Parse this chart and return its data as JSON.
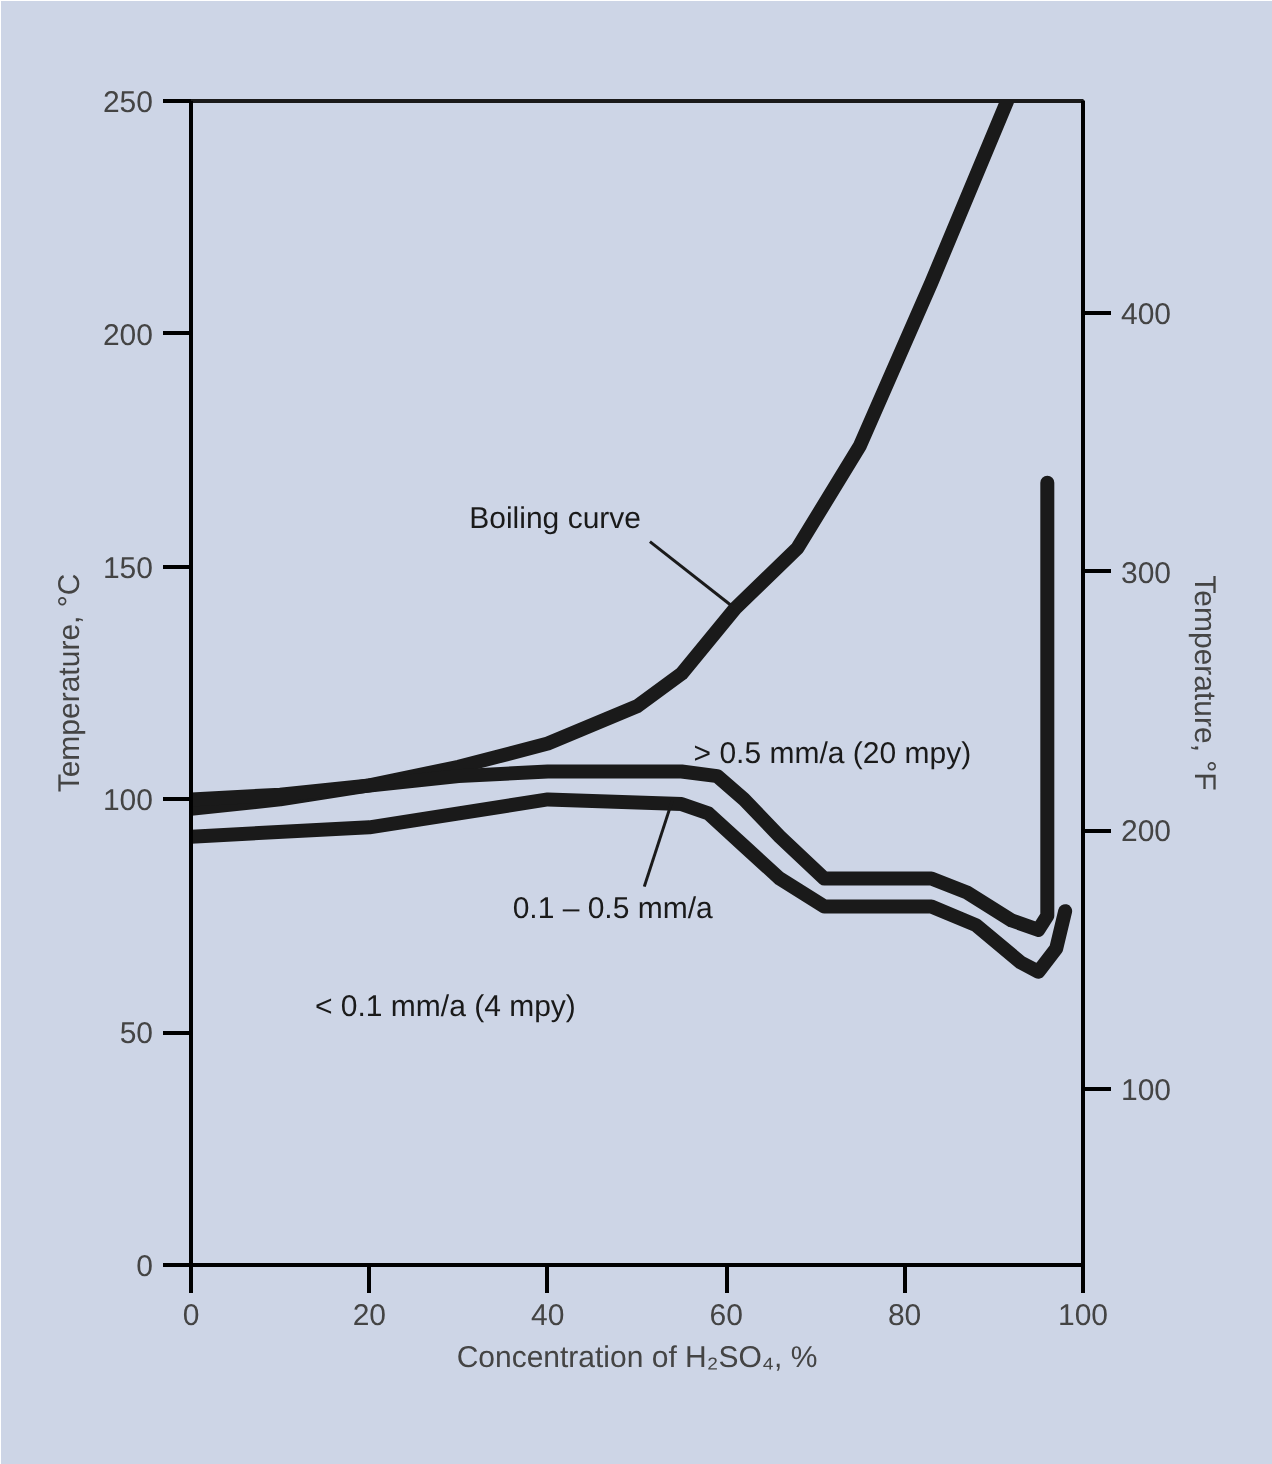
{
  "chart_data": {
    "type": "line",
    "xlabel": "Concentration of H₂SO₄, %",
    "ylabel": "Temperature, °C",
    "y2label": "Temperature, °F",
    "xlim": [
      0,
      100
    ],
    "xticks": [
      0,
      20,
      40,
      60,
      80,
      100
    ],
    "ylim": [
      0,
      250
    ],
    "yticks": [
      0,
      50,
      100,
      150,
      200,
      250
    ],
    "y2lim": [
      32,
      482
    ],
    "y2ticks": [
      100,
      200,
      300,
      400
    ],
    "grid": false,
    "marker": "none",
    "line_style": "solid",
    "series": [
      {
        "color": "#1a1a1a",
        "x": [
          0,
          10,
          20,
          30,
          40,
          50,
          55,
          61,
          68,
          75,
          83,
          91.5
        ],
        "values": [
          98,
          100,
          103,
          107,
          112,
          120,
          127,
          141,
          154,
          176,
          211,
          250
        ]
      },
      {
        "color": "#1a1a1a",
        "x": [
          0,
          10,
          20,
          30,
          40,
          55,
          59,
          62,
          66,
          71,
          83,
          87,
          92,
          95,
          96,
          96
        ],
        "values": [
          100,
          101,
          103,
          105,
          106,
          106,
          105,
          100,
          92,
          83,
          83,
          80,
          74,
          72,
          75,
          168
        ]
      },
      {
        "color": "#1a1a1a",
        "x": [
          0,
          20,
          40,
          55,
          58,
          62,
          66,
          71,
          83,
          88,
          93,
          95,
          97,
          98
        ],
        "values": [
          92,
          94,
          100,
          99,
          97,
          90,
          83,
          77,
          77,
          73,
          65,
          63,
          68,
          76
        ]
      }
    ],
    "annotations": [
      {
        "text": "Boiling curve",
        "x": 61,
        "y": 141
      },
      "> 0.5 mm/a (20 mpy)",
      {
        "text": "0.1 – 0.5 mm/a",
        "x": 54,
        "y": 100
      },
      "< 0.1 mm/a (4 mpy)"
    ]
  }
}
